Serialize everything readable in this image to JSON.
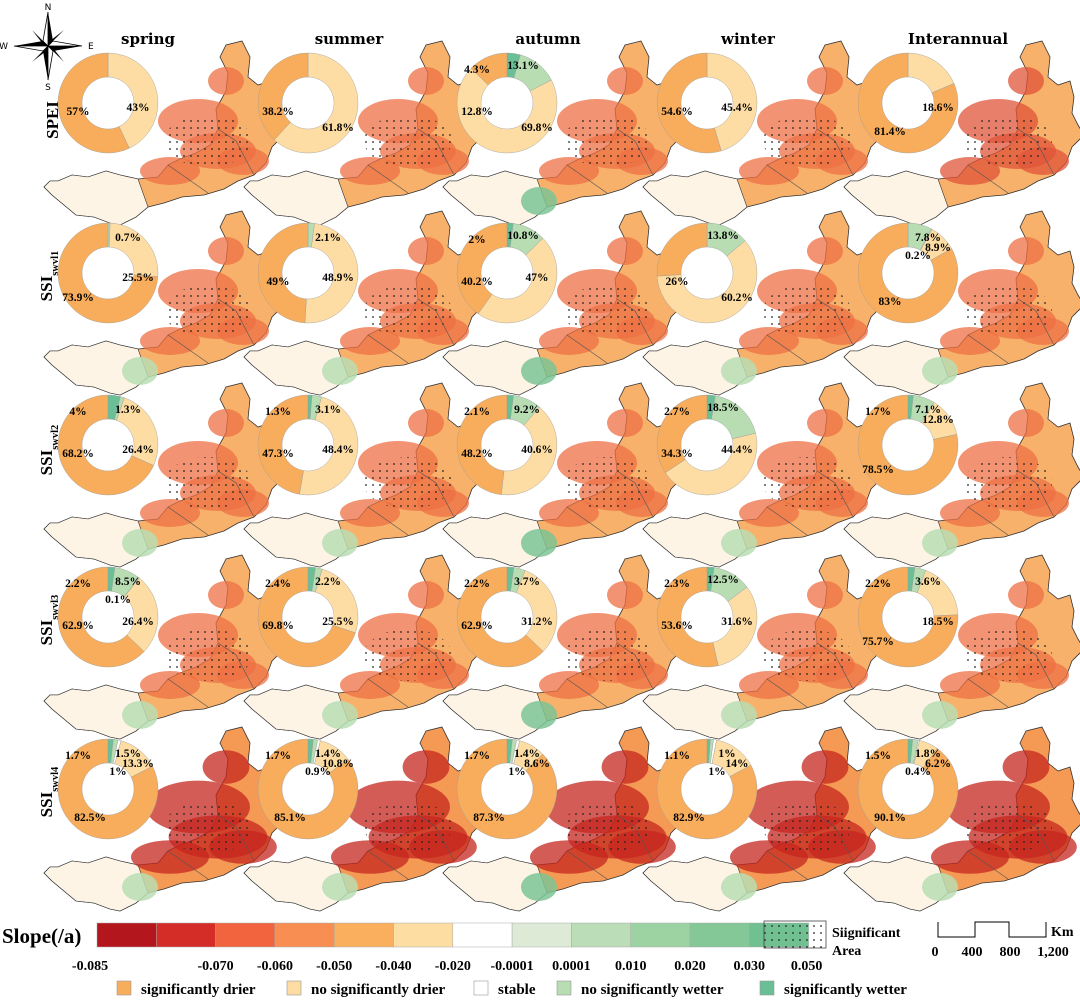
{
  "seasons": [
    "spring",
    "summer",
    "autumn",
    "winter",
    "Interannual"
  ],
  "rows": [
    {
      "label": "SPEI",
      "sub": ""
    },
    {
      "label": "SSI",
      "sub": "swvl1"
    },
    {
      "label": "SSI",
      "sub": "swvl2"
    },
    {
      "label": "SSI",
      "sub": "swvl3"
    },
    {
      "label": "SSI",
      "sub": "swvl4"
    }
  ],
  "compass": {
    "n": "N",
    "s": "S",
    "e": "E",
    "w": "W"
  },
  "category_colors": {
    "significantly_drier": "#F7AD5B",
    "no_significantly_drier": "#FDDDA3",
    "stable": "#FFFFFF",
    "no_significantly_wetter": "#B8DDB3",
    "significantly_wetter": "#6BBF96"
  },
  "chart_data": {
    "type": "donut-grid",
    "categories": [
      "significantly drier",
      "no significantly drier",
      "stable",
      "no significantly wetter",
      "significantly wetter"
    ],
    "cells": [
      [
        {
          "values": [
            57,
            43,
            0,
            0,
            0
          ],
          "labels": [
            "57%",
            "43%",
            "",
            "",
            ""
          ]
        },
        {
          "values": [
            38.2,
            61.8,
            0,
            0,
            0
          ],
          "labels": [
            "38.2%",
            "61.8%",
            "",
            "",
            ""
          ]
        },
        {
          "values": [
            12.8,
            69.8,
            0,
            13.1,
            4.3
          ],
          "labels": [
            "12.8%",
            "69.8%",
            "",
            "13.1%",
            "4.3%"
          ]
        },
        {
          "values": [
            54.6,
            45.4,
            0,
            0,
            0
          ],
          "labels": [
            "54.6%",
            "45.4%",
            "",
            "",
            ""
          ]
        },
        {
          "values": [
            81.4,
            18.6,
            0,
            0,
            0
          ],
          "labels": [
            "81.4%",
            "18.6%",
            "",
            "",
            ""
          ]
        }
      ],
      [
        {
          "values": [
            73.9,
            25.5,
            0,
            0.7,
            0
          ],
          "labels": [
            "73.9%",
            "25.5%",
            "",
            "0.7%",
            ""
          ]
        },
        {
          "values": [
            49,
            48.9,
            0,
            2.1,
            0
          ],
          "labels": [
            "49%",
            "48.9%",
            "",
            "2.1%",
            ""
          ]
        },
        {
          "values": [
            40.2,
            47,
            0,
            10.8,
            2
          ],
          "labels": [
            "40.2%",
            "47%",
            "",
            "10.8%",
            "2%"
          ]
        },
        {
          "values": [
            26,
            60.2,
            0,
            13.8,
            0
          ],
          "labels": [
            "26%",
            "60.2%",
            "",
            "13.8%",
            ""
          ]
        },
        {
          "values": [
            83,
            8.9,
            0.2,
            7.8,
            0
          ],
          "labels": [
            "83%",
            "8.9%",
            "0.2%",
            "7.8%",
            ""
          ]
        }
      ],
      [
        {
          "values": [
            68.2,
            26.4,
            0,
            1.3,
            4
          ],
          "labels": [
            "68.2%",
            "26.4%",
            "",
            "1.3%",
            "4%"
          ]
        },
        {
          "values": [
            47.3,
            48.4,
            0,
            3.1,
            1.3
          ],
          "labels": [
            "47.3%",
            "48.4%",
            "",
            "3.1%",
            "1.3%"
          ]
        },
        {
          "values": [
            48.2,
            40.6,
            0,
            9.2,
            2.1
          ],
          "labels": [
            "48.2%",
            "40.6%",
            "",
            "9.2%",
            "2.1%"
          ]
        },
        {
          "values": [
            34.3,
            44.4,
            0,
            18.5,
            2.7
          ],
          "labels": [
            "34.3%",
            "44.4%",
            "",
            "18.5%",
            "2.7%"
          ]
        },
        {
          "values": [
            78.5,
            12.8,
            0,
            7.1,
            1.7
          ],
          "labels": [
            "78.5%",
            "12.8%",
            "",
            "7.1%",
            "1.7%"
          ]
        }
      ],
      [
        {
          "values": [
            62.9,
            26.4,
            0.1,
            8.5,
            2.2
          ],
          "labels": [
            "62.9%",
            "26.4%",
            "0.1%",
            "8.5%",
            "2.2%"
          ]
        },
        {
          "values": [
            69.8,
            25.5,
            0,
            2.2,
            2.4
          ],
          "labels": [
            "69.8%",
            "25.5%",
            "",
            "2.2%",
            "2.4%"
          ]
        },
        {
          "values": [
            62.9,
            31.2,
            0,
            3.7,
            2.2
          ],
          "labels": [
            "62.9%",
            "31.2%",
            "",
            "3.7%",
            "2.2%"
          ]
        },
        {
          "values": [
            53.6,
            31.6,
            0,
            12.5,
            2.3
          ],
          "labels": [
            "53.6%",
            "31.6%",
            "",
            "12.5%",
            "2.3%"
          ]
        },
        {
          "values": [
            75.7,
            18.5,
            0,
            3.6,
            2.2
          ],
          "labels": [
            "75.7%",
            "18.5%",
            "",
            "3.6%",
            "2.2%"
          ]
        }
      ],
      [
        {
          "values": [
            82.5,
            13.3,
            1,
            1.5,
            1.7
          ],
          "labels": [
            "82.5%",
            "13.3%",
            "1%",
            "1.5%",
            "1.7%"
          ]
        },
        {
          "values": [
            85.1,
            10.8,
            0.9,
            1.4,
            1.7
          ],
          "labels": [
            "85.1%",
            "10.8%",
            "0.9%",
            "1.4%",
            "1.7%"
          ]
        },
        {
          "values": [
            87.3,
            8.6,
            1,
            1.4,
            1.7
          ],
          "labels": [
            "87.3%",
            "8.6%",
            "1%",
            "1.4%",
            "1.7%"
          ]
        },
        {
          "values": [
            82.9,
            14,
            1,
            1,
            1.1
          ],
          "labels": [
            "82.9%",
            "14%",
            "1%",
            "1%",
            "1.1%"
          ]
        },
        {
          "values": [
            90.1,
            6.2,
            0.4,
            1.8,
            1.5
          ],
          "labels": [
            "90.1%",
            "6.2%",
            "0.4%",
            "1.8%",
            "1.5%"
          ]
        }
      ]
    ]
  },
  "colorbar": {
    "title": "Slope(/a)",
    "colors": [
      "#B3161C",
      "#D42D27",
      "#F2643E",
      "#F98E52",
      "#F9AF5E",
      "#FDDDA2",
      "#FFFFFF",
      "#DDEBD6",
      "#BBDDB8",
      "#9DD2A3",
      "#85C898",
      "#71C091"
    ],
    "ticks": [
      "-0.085",
      "-0.070",
      "-0.060",
      "-0.050",
      "-0.040",
      "-0.020",
      "-0.0001",
      "0.0001",
      "0.010",
      "0.020",
      "0.030",
      "0.050"
    ]
  },
  "significant_legend": {
    "line1": "Siignificant",
    "line2": "Area"
  },
  "scalebar": {
    "unit": "Km",
    "ticks": [
      "0",
      "400",
      "800",
      "1,200"
    ]
  },
  "category_legend": [
    {
      "label": "significantly drier",
      "color": "#F7AD5B"
    },
    {
      "label": "no significantly drier",
      "color": "#FDDDA3"
    },
    {
      "label": "stable",
      "color": "#FFFFFF"
    },
    {
      "label": "no significantly wetter",
      "color": "#B8DDB3"
    },
    {
      "label": "significantly wetter",
      "color": "#6BBF96"
    }
  ]
}
